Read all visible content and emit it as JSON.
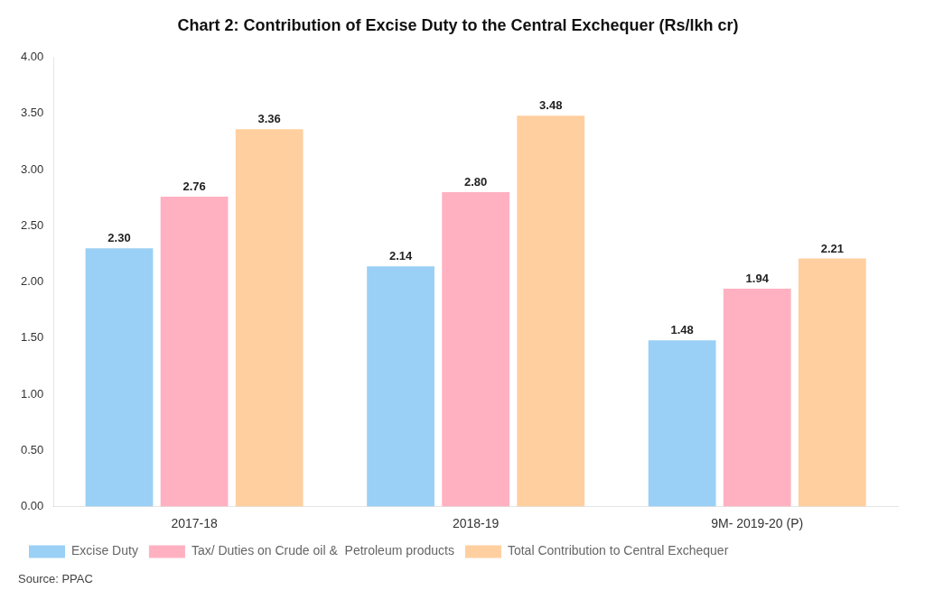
{
  "chart_data": {
    "type": "bar",
    "title": "Chart 2: Contribution of Excise Duty to the Central Exchequer (Rs/lkh cr)",
    "categories": [
      "2017-18",
      "2018-19",
      "9M- 2019-20 (P)"
    ],
    "series": [
      {
        "name": "Excise Duty",
        "values": [
          2.3,
          2.14,
          1.48
        ],
        "value_labels": [
          "2.30",
          "2.14",
          "1.48"
        ]
      },
      {
        "name": "Tax/ Duties on Crude oil &  Petroleum products",
        "values": [
          2.76,
          2.8,
          1.94
        ],
        "value_labels": [
          "2.76",
          "2.80",
          "1.94"
        ]
      },
      {
        "name": "Total Contribution to Central Exchequer",
        "values": [
          3.36,
          3.48,
          2.21
        ],
        "value_labels": [
          "3.36",
          "3.48",
          "2.21"
        ]
      }
    ],
    "ylim": [
      0.0,
      4.0
    ],
    "yticks": [
      {
        "value": 0,
        "label": "0.00"
      },
      {
        "value": 0.5,
        "label": "0.50"
      },
      {
        "value": 1,
        "label": "1.00"
      },
      {
        "value": 1.5,
        "label": "1.50"
      },
      {
        "value": 2,
        "label": "2.00"
      },
      {
        "value": 2.5,
        "label": "2.50"
      },
      {
        "value": 3,
        "label": "3.00"
      },
      {
        "value": 3.5,
        "label": "3.50"
      },
      {
        "value": 4,
        "label": "4.00"
      }
    ],
    "grid": false,
    "legend": "bottom",
    "data_labels": true,
    "annotations": [
      "Source: PPAC"
    ]
  }
}
